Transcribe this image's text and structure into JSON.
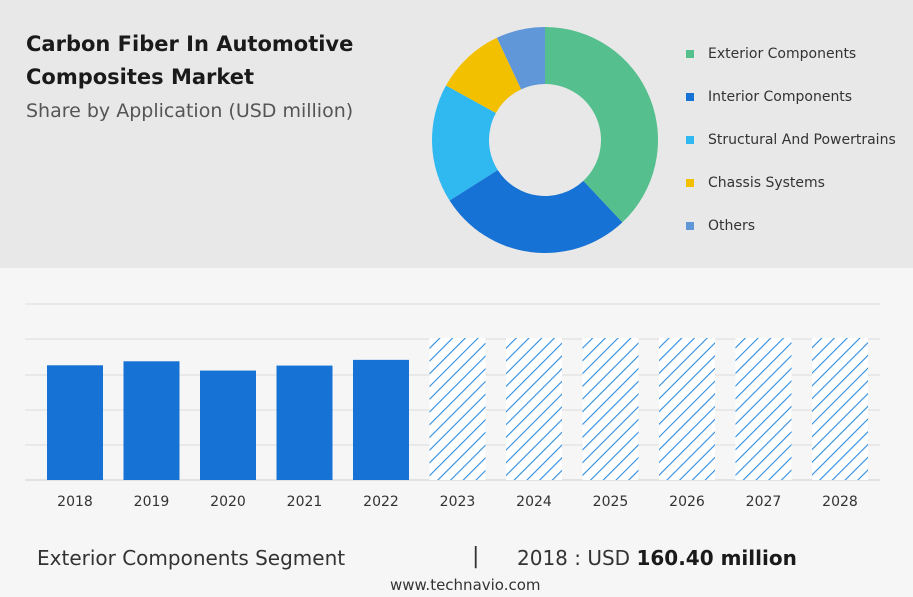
{
  "header": {
    "title": "Carbon Fiber In Automotive Composites Market",
    "subtitle": "Share by Application (USD million)"
  },
  "colors": {
    "exterior": "#55c08d",
    "interior": "#1672d4",
    "structural": "#2fb9f0",
    "chassis": "#f3c000",
    "others": "#5f97d9",
    "forecast_stripe": "#2e8ce0"
  },
  "chart_data": [
    {
      "type": "pie",
      "donut": true,
      "legend_position": "right",
      "labels": [
        "Exterior Components",
        "Interior Components",
        "Structural And Powertrains",
        "Chassis Systems",
        "Others"
      ],
      "values": [
        38,
        28,
        17,
        10,
        7
      ]
    },
    {
      "type": "bar",
      "categories": [
        "2018",
        "2019",
        "2020",
        "2021",
        "2022",
        "2023",
        "2024",
        "2025",
        "2026",
        "2027",
        "2028"
      ],
      "values": [
        160.4,
        166,
        153,
        160,
        168,
        null,
        null,
        null,
        null,
        null,
        null
      ],
      "forecast": [
        false,
        false,
        false,
        false,
        false,
        true,
        true,
        true,
        true,
        true,
        true
      ],
      "grid": true
    }
  ],
  "footer": {
    "segment": "Exterior Components Segment",
    "separator": "|",
    "year_label": "2018 : USD ",
    "year_value": "160.40 million",
    "website": "www.technavio.com"
  }
}
